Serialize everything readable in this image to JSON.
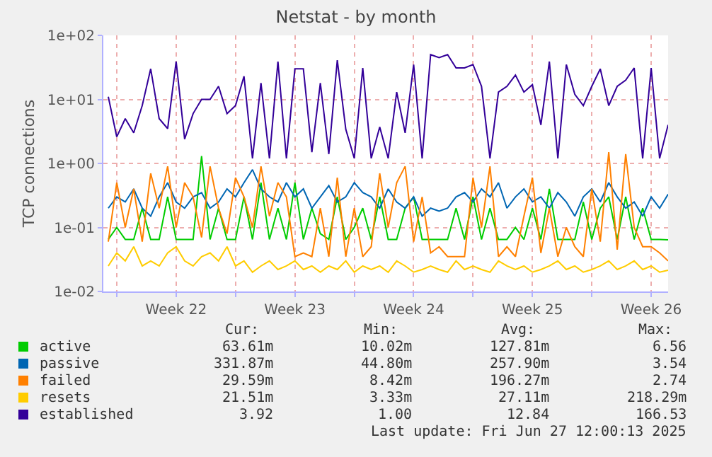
{
  "chart_data": {
    "type": "line",
    "title": "Netstat - by month",
    "ylabel": "TCP connections",
    "x": [
      "2025-05-25T12:00",
      "2025-05-26T00:00",
      "2025-05-26T12:00",
      "2025-05-27T00:00",
      "2025-05-27T12:00",
      "2025-05-28T00:00",
      "2025-05-28T12:00",
      "2025-05-29T00:00",
      "2025-05-29T12:00",
      "2025-05-30T00:00",
      "2025-05-30T12:00",
      "2025-05-31T00:00",
      "2025-05-31T12:00",
      "2025-06-01T00:00",
      "2025-06-01T12:00",
      "2025-06-02T00:00",
      "2025-06-02T12:00",
      "2025-06-03T00:00",
      "2025-06-03T12:00",
      "2025-06-04T00:00",
      "2025-06-04T12:00",
      "2025-06-05T00:00",
      "2025-06-05T12:00",
      "2025-06-06T00:00",
      "2025-06-06T12:00",
      "2025-06-07T00:00",
      "2025-06-07T12:00",
      "2025-06-08T00:00",
      "2025-06-08T12:00",
      "2025-06-09T00:00",
      "2025-06-09T12:00",
      "2025-06-10T00:00",
      "2025-06-10T12:00",
      "2025-06-11T00:00",
      "2025-06-11T12:00",
      "2025-06-12T00:00",
      "2025-06-12T12:00",
      "2025-06-13T00:00",
      "2025-06-13T12:00",
      "2025-06-14T00:00",
      "2025-06-14T12:00",
      "2025-06-15T00:00",
      "2025-06-15T12:00",
      "2025-06-16T00:00",
      "2025-06-16T12:00",
      "2025-06-17T00:00",
      "2025-06-17T12:00",
      "2025-06-18T00:00",
      "2025-06-18T12:00",
      "2025-06-19T00:00",
      "2025-06-19T12:00",
      "2025-06-20T00:00",
      "2025-06-20T12:00",
      "2025-06-21T00:00",
      "2025-06-21T12:00",
      "2025-06-22T00:00",
      "2025-06-22T12:00",
      "2025-06-23T00:00",
      "2025-06-23T12:00",
      "2025-06-24T00:00",
      "2025-06-24T12:00",
      "2025-06-25T00:00",
      "2025-06-25T12:00",
      "2025-06-26T00:00",
      "2025-06-26T12:00",
      "2025-06-27T00:00",
      "2025-06-27T12:00"
    ],
    "series": [
      {
        "name": "active",
        "color": "#00cc00",
        "values": [
          0.065,
          0.1,
          0.065,
          0.065,
          0.2,
          0.065,
          0.065,
          0.3,
          0.065,
          0.065,
          0.065,
          1.3,
          0.065,
          0.2,
          0.065,
          0.065,
          0.3,
          0.065,
          0.5,
          0.065,
          0.2,
          0.065,
          0.5,
          0.065,
          0.2,
          0.08,
          0.065,
          0.3,
          0.065,
          0.1,
          0.2,
          0.065,
          0.3,
          0.065,
          0.065,
          0.2,
          0.3,
          0.065,
          0.065,
          0.065,
          0.065,
          0.2,
          0.065,
          0.3,
          0.065,
          0.2,
          0.065,
          0.065,
          0.1,
          0.065,
          0.2,
          0.065,
          0.4,
          0.065,
          0.065,
          0.065,
          0.25,
          0.065,
          0.2,
          0.3,
          0.065,
          0.3,
          0.065,
          0.2,
          0.065,
          0.065,
          0.064
        ]
      },
      {
        "name": "passive",
        "color": "#0066b3",
        "values": [
          0.2,
          0.3,
          0.25,
          0.4,
          0.2,
          0.15,
          0.3,
          0.5,
          0.25,
          0.2,
          0.3,
          0.35,
          0.2,
          0.25,
          0.4,
          0.3,
          0.5,
          0.8,
          0.4,
          0.3,
          0.25,
          0.5,
          0.3,
          0.4,
          0.2,
          0.3,
          0.45,
          0.25,
          0.3,
          0.5,
          0.35,
          0.3,
          0.2,
          0.4,
          0.25,
          0.2,
          0.3,
          0.15,
          0.2,
          0.18,
          0.2,
          0.3,
          0.35,
          0.25,
          0.4,
          0.3,
          0.5,
          0.2,
          0.3,
          0.4,
          0.25,
          0.3,
          0.2,
          0.35,
          0.25,
          0.15,
          0.3,
          0.4,
          0.25,
          0.5,
          0.3,
          0.2,
          0.25,
          0.15,
          0.3,
          0.2,
          0.33
        ]
      },
      {
        "name": "failed",
        "color": "#ff8000",
        "values": [
          0.06,
          0.5,
          0.1,
          0.4,
          0.06,
          0.7,
          0.2,
          0.9,
          0.1,
          0.5,
          0.3,
          0.07,
          0.9,
          0.2,
          0.08,
          0.6,
          0.3,
          0.1,
          0.9,
          0.15,
          0.5,
          0.3,
          0.035,
          0.04,
          0.035,
          0.2,
          0.035,
          0.6,
          0.035,
          0.2,
          0.035,
          0.05,
          0.7,
          0.1,
          0.5,
          0.9,
          0.06,
          0.3,
          0.04,
          0.05,
          0.035,
          0.035,
          0.035,
          0.6,
          0.1,
          0.9,
          0.035,
          0.05,
          0.035,
          0.15,
          0.6,
          0.04,
          0.2,
          0.035,
          0.1,
          0.05,
          0.035,
          0.4,
          0.06,
          1.5,
          0.045,
          1.4,
          0.1,
          0.05,
          0.05,
          0.04,
          0.03
        ]
      },
      {
        "name": "resets",
        "color": "#ffcc00",
        "values": [
          0.025,
          0.04,
          0.03,
          0.05,
          0.025,
          0.03,
          0.025,
          0.04,
          0.05,
          0.03,
          0.025,
          0.035,
          0.04,
          0.03,
          0.05,
          0.025,
          0.03,
          0.02,
          0.025,
          0.03,
          0.022,
          0.025,
          0.03,
          0.022,
          0.025,
          0.02,
          0.025,
          0.022,
          0.03,
          0.02,
          0.025,
          0.022,
          0.025,
          0.02,
          0.03,
          0.025,
          0.02,
          0.022,
          0.025,
          0.022,
          0.02,
          0.03,
          0.022,
          0.025,
          0.022,
          0.02,
          0.03,
          0.025,
          0.022,
          0.025,
          0.02,
          0.022,
          0.025,
          0.03,
          0.022,
          0.025,
          0.02,
          0.022,
          0.025,
          0.03,
          0.022,
          0.025,
          0.03,
          0.022,
          0.025,
          0.02,
          0.0215
        ]
      },
      {
        "name": "established",
        "color": "#330099",
        "values": [
          11,
          2.6,
          5,
          3,
          8,
          30,
          5,
          3.5,
          39,
          2.4,
          6,
          10,
          10,
          16,
          6,
          8,
          23,
          1.2,
          18,
          1.2,
          39,
          1.2,
          30,
          30,
          1.5,
          18,
          1.4,
          41,
          3.4,
          1.2,
          31,
          1.2,
          3.7,
          1.2,
          13,
          3,
          35,
          1.2,
          50,
          45,
          50,
          31,
          31,
          35,
          16,
          1.2,
          13,
          16,
          24,
          13,
          17,
          4,
          39,
          1.2,
          35,
          12,
          8,
          16,
          30,
          8,
          16,
          20,
          31,
          1.2,
          31,
          1.2,
          4
        ]
      }
    ],
    "log": "y",
    "ylim": [
      0.01,
      100
    ],
    "yticks": [
      {
        "value": 0.01,
        "label": "1e-02"
      },
      {
        "value": 0.1,
        "label": "1e-01"
      },
      {
        "value": 1,
        "label": "1e+00"
      },
      {
        "value": 10,
        "label": "1e+01"
      },
      {
        "value": 100,
        "label": "1e+02"
      }
    ],
    "xlim": [
      "2025-05-25T05:00",
      "2025-06-27T12:00"
    ],
    "xticks": [
      {
        "value": "2025-05-26",
        "label": null
      },
      {
        "value": "2025-05-29T12:00",
        "label": "Week 22"
      },
      {
        "value": "2025-06-02",
        "label": null
      },
      {
        "value": "2025-06-05T12:00",
        "label": "Week 23"
      },
      {
        "value": "2025-06-09",
        "label": null
      },
      {
        "value": "2025-06-12T12:00",
        "label": "Week 24"
      },
      {
        "value": "2025-06-16",
        "label": null
      },
      {
        "value": "2025-06-19T12:00",
        "label": "Week 25"
      },
      {
        "value": "2025-06-23",
        "label": null
      },
      {
        "value": "2025-06-26T12:00",
        "label": "Week 26"
      }
    ],
    "grid": true,
    "legend": "bottom",
    "marker": "none",
    "line_style": "solid",
    "annotations": [
      "Cur:",
      "Min:",
      "Avg:",
      "Max:",
      "63.61m",
      "10.02m",
      "127.81m",
      "6.56",
      "331.87m",
      "44.80m",
      "257.90m",
      "3.54",
      "29.59m",
      "8.42m",
      "196.27m",
      "2.74",
      "21.51m",
      "3.33m",
      "27.11m",
      "218.29m",
      "3.92",
      "1.00",
      "12.84",
      "166.53",
      "Last update: Fri Jun 27 12:00:13 2025"
    ]
  }
}
